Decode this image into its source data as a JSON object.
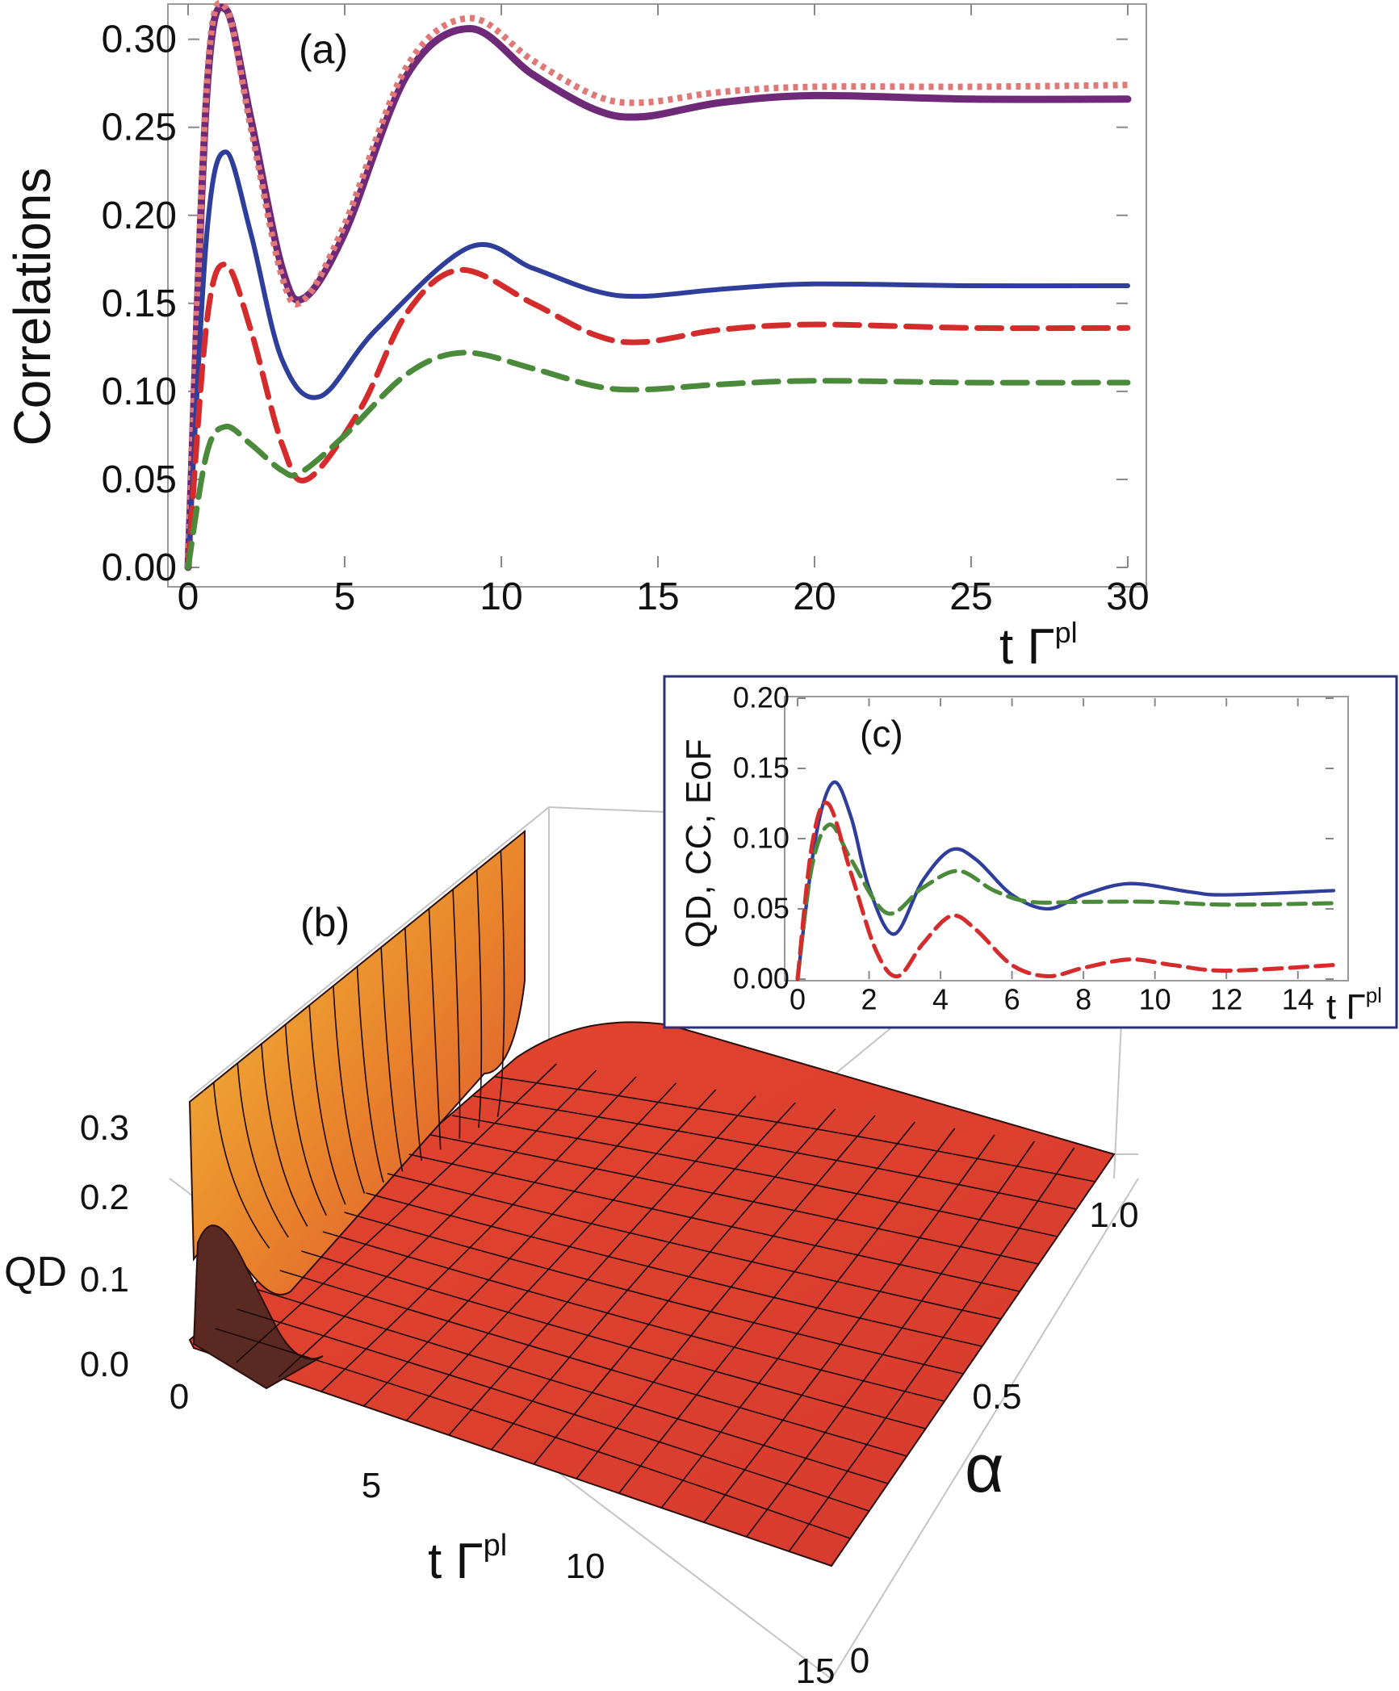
{
  "chart_data": [
    {
      "type": "line",
      "panel_label": "(a)",
      "ylabel": "Correlations",
      "xlabel_main": "t Γ",
      "xlabel_sup": "pl",
      "xlim": [
        0,
        30
      ],
      "ylim": [
        0,
        0.32
      ],
      "xticks": [
        "0",
        "5",
        "10",
        "15",
        "20",
        "25",
        "30"
      ],
      "yticks": [
        "0.00",
        "0.05",
        "0.10",
        "0.15",
        "0.20",
        "0.25",
        "0.30"
      ],
      "series": [
        {
          "style": "solid-thick",
          "color": "#6e2a78",
          "points": [
            [
              0,
              0
            ],
            [
              0.6,
              0.27
            ],
            [
              1.2,
              0.317
            ],
            [
              2.0,
              0.255
            ],
            [
              3.0,
              0.17
            ],
            [
              3.7,
              0.153
            ],
            [
              5.0,
              0.19
            ],
            [
              7.0,
              0.28
            ],
            [
              9.0,
              0.306
            ],
            [
              11.0,
              0.28
            ],
            [
              13.0,
              0.26
            ],
            [
              14.5,
              0.256
            ],
            [
              17.0,
              0.264
            ],
            [
              20.0,
              0.268
            ],
            [
              25.0,
              0.266
            ],
            [
              30.0,
              0.266
            ]
          ]
        },
        {
          "style": "dotted",
          "color": "#e07878",
          "points": [
            [
              0,
              0
            ],
            [
              0.6,
              0.275
            ],
            [
              1.2,
              0.318
            ],
            [
              2.0,
              0.25
            ],
            [
              3.0,
              0.165
            ],
            [
              3.7,
              0.152
            ],
            [
              5.0,
              0.195
            ],
            [
              7.0,
              0.285
            ],
            [
              9.0,
              0.312
            ],
            [
              11.0,
              0.288
            ],
            [
              13.0,
              0.268
            ],
            [
              14.5,
              0.264
            ],
            [
              17.0,
              0.27
            ],
            [
              20.0,
              0.273
            ],
            [
              25.0,
              0.273
            ],
            [
              30.0,
              0.274
            ]
          ]
        },
        {
          "style": "solid",
          "color": "#2e3e9a",
          "points": [
            [
              0,
              0
            ],
            [
              0.6,
              0.19
            ],
            [
              1.2,
              0.236
            ],
            [
              2.0,
              0.19
            ],
            [
              3.0,
              0.118
            ],
            [
              4.2,
              0.097
            ],
            [
              6.0,
              0.135
            ],
            [
              9.0,
              0.182
            ],
            [
              11.0,
              0.17
            ],
            [
              13.0,
              0.157
            ],
            [
              14.5,
              0.154
            ],
            [
              17.0,
              0.158
            ],
            [
              20.0,
              0.161
            ],
            [
              25.0,
              0.16
            ],
            [
              30.0,
              0.16
            ]
          ]
        },
        {
          "style": "dashed",
          "color": "#d42c2c",
          "points": [
            [
              0,
              0
            ],
            [
              0.6,
              0.14
            ],
            [
              1.2,
              0.172
            ],
            [
              2.0,
              0.135
            ],
            [
              3.0,
              0.07
            ],
            [
              3.8,
              0.05
            ],
            [
              5.5,
              0.09
            ],
            [
              7.0,
              0.145
            ],
            [
              8.7,
              0.169
            ],
            [
              11.0,
              0.15
            ],
            [
              13.0,
              0.132
            ],
            [
              14.5,
              0.128
            ],
            [
              17.0,
              0.135
            ],
            [
              20.0,
              0.138
            ],
            [
              25.0,
              0.136
            ],
            [
              30.0,
              0.136
            ]
          ]
        },
        {
          "style": "dashed",
          "color": "#4a8a3a",
          "points": [
            [
              0,
              0
            ],
            [
              0.6,
              0.065
            ],
            [
              1.2,
              0.08
            ],
            [
              2.0,
              0.07
            ],
            [
              3.0,
              0.055
            ],
            [
              3.6,
              0.054
            ],
            [
              5.0,
              0.075
            ],
            [
              7.0,
              0.11
            ],
            [
              8.8,
              0.122
            ],
            [
              11.0,
              0.113
            ],
            [
              13.0,
              0.103
            ],
            [
              14.5,
              0.101
            ],
            [
              17.0,
              0.104
            ],
            [
              20.0,
              0.106
            ],
            [
              25.0,
              0.105
            ],
            [
              30.0,
              0.105
            ]
          ]
        }
      ]
    },
    {
      "type": "line",
      "panel_label": "(c)",
      "ylabel": "QD, CC, EoF",
      "xlabel_main": "t Γ",
      "xlabel_sup": "pl",
      "xlim": [
        0,
        15
      ],
      "ylim": [
        0,
        0.2
      ],
      "xticks": [
        "0",
        "2",
        "4",
        "6",
        "8",
        "10",
        "12",
        "14"
      ],
      "yticks": [
        "0.00",
        "0.05",
        "0.10",
        "0.15",
        "0.20"
      ],
      "series": [
        {
          "style": "solid",
          "color": "#2e3e9a",
          "points": [
            [
              0,
              0
            ],
            [
              0.5,
              0.1
            ],
            [
              1.0,
              0.14
            ],
            [
              1.5,
              0.115
            ],
            [
              2.0,
              0.065
            ],
            [
              2.7,
              0.032
            ],
            [
              3.5,
              0.07
            ],
            [
              4.3,
              0.092
            ],
            [
              5.0,
              0.085
            ],
            [
              6.0,
              0.06
            ],
            [
              7.0,
              0.05
            ],
            [
              8.0,
              0.06
            ],
            [
              9.3,
              0.068
            ],
            [
              11.0,
              0.062
            ],
            [
              12.0,
              0.06
            ],
            [
              15.0,
              0.063
            ]
          ]
        },
        {
          "style": "dashed",
          "color": "#4a8a3a",
          "points": [
            [
              0,
              0
            ],
            [
              0.4,
              0.08
            ],
            [
              0.9,
              0.11
            ],
            [
              1.5,
              0.085
            ],
            [
              2.5,
              0.047
            ],
            [
              3.5,
              0.065
            ],
            [
              4.5,
              0.077
            ],
            [
              5.5,
              0.063
            ],
            [
              6.5,
              0.055
            ],
            [
              8.0,
              0.055
            ],
            [
              10.0,
              0.055
            ],
            [
              12.0,
              0.053
            ],
            [
              15.0,
              0.054
            ]
          ]
        },
        {
          "style": "dashed",
          "color": "#d42c2c",
          "points": [
            [
              0,
              0
            ],
            [
              0.4,
              0.095
            ],
            [
              0.85,
              0.125
            ],
            [
              1.5,
              0.075
            ],
            [
              2.2,
              0.02
            ],
            [
              2.8,
              0.002
            ],
            [
              3.5,
              0.025
            ],
            [
              4.3,
              0.045
            ],
            [
              5.0,
              0.035
            ],
            [
              6.0,
              0.01
            ],
            [
              7.0,
              0.002
            ],
            [
              8.0,
              0.008
            ],
            [
              9.3,
              0.014
            ],
            [
              10.5,
              0.01
            ],
            [
              12.0,
              0.006
            ],
            [
              15.0,
              0.01
            ]
          ]
        }
      ]
    },
    {
      "type": "surface",
      "panel_label": "(b)",
      "zlabel": "QD",
      "xlabel_main": "t Γ",
      "xlabel_sup": "pl",
      "ylabel": "α",
      "xlim": [
        0,
        15
      ],
      "ylim": [
        0,
        1.0
      ],
      "zlim": [
        0,
        0.3
      ],
      "xticks": [
        "0",
        "5",
        "10",
        "15"
      ],
      "yticks": [
        "0",
        "0.5",
        "1.0"
      ],
      "zticks": [
        "0.0",
        "0.1",
        "0.2",
        "0.3"
      ]
    }
  ]
}
